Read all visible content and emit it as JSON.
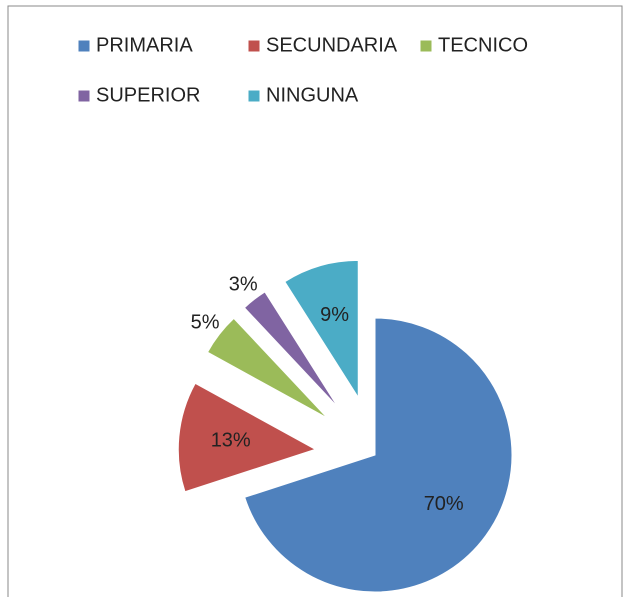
{
  "chart_data": {
    "type": "pie",
    "categories": [
      "PRIMARIA",
      "SECUNDARIA",
      "TECNICO",
      "SUPERIOR",
      "NINGUNA"
    ],
    "values": [
      70,
      13,
      5,
      3,
      9
    ],
    "value_labels": [
      "70%",
      "13%",
      "5%",
      "3%",
      "9%"
    ],
    "colors": [
      "#4f81bd",
      "#c0504d",
      "#9bbb59",
      "#8064a2",
      "#4bacc6"
    ],
    "exploded": [
      false,
      true,
      true,
      true,
      true
    ],
    "legend": "top"
  }
}
